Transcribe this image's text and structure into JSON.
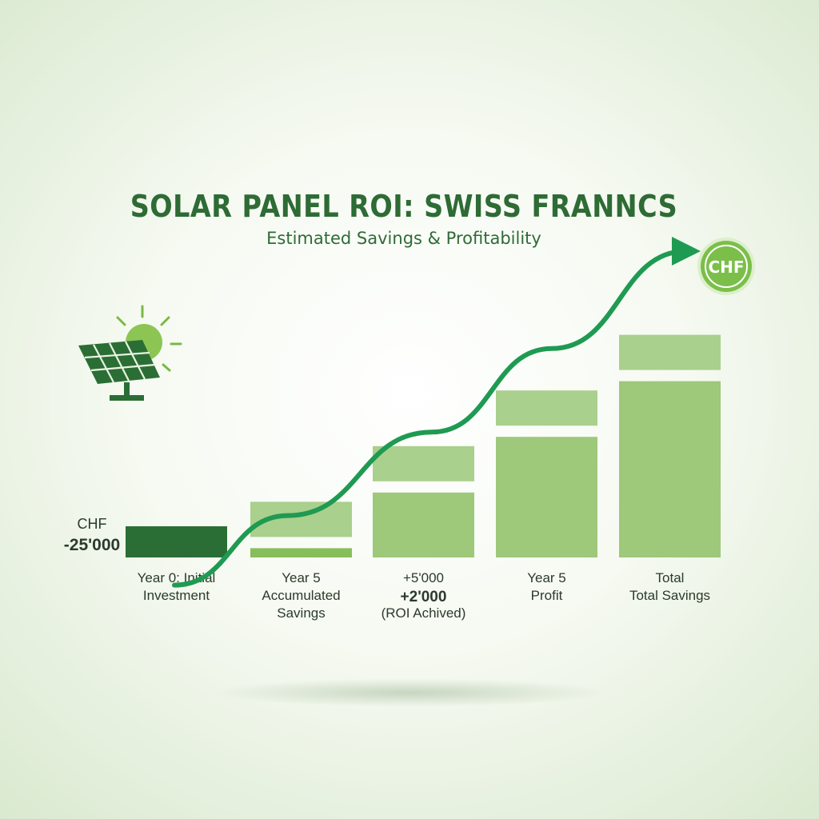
{
  "title": "SOLAR PANEL ROI: SWISS FRANNCS",
  "subtitle": "Estimated Savings & Profitability",
  "badge": {
    "label": "CHF",
    "color": "#7bbf4a"
  },
  "icons": {
    "solar": "solar-panel-sun-icon",
    "arrow": "trend-arrow-icon"
  },
  "colors": {
    "investment": "#2b6e35",
    "bar_main": "#9ec87a",
    "bar_top": "#a9d08c",
    "bar_accent": "#88bd5c",
    "arrow": "#1f9a52"
  },
  "chart_data": {
    "type": "bar",
    "categories": [
      [
        "Year 0: Initial",
        "Investment"
      ],
      [
        "Year 5",
        "Accumulated",
        "Savings"
      ],
      [
        "+5'000",
        "+2'000",
        "(ROI Achived)"
      ],
      [
        "Year 5",
        "Profit"
      ],
      [
        "Total",
        "Total Savings"
      ]
    ],
    "value_labels": [
      [
        "CHF",
        "-25'000"
      ]
    ],
    "series": [
      {
        "values": [
          -25000,
          20000,
          40000,
          60000,
          80000
        ]
      }
    ],
    "trend_line": [
      -20000,
      5000,
      35000,
      65000,
      100000
    ]
  }
}
